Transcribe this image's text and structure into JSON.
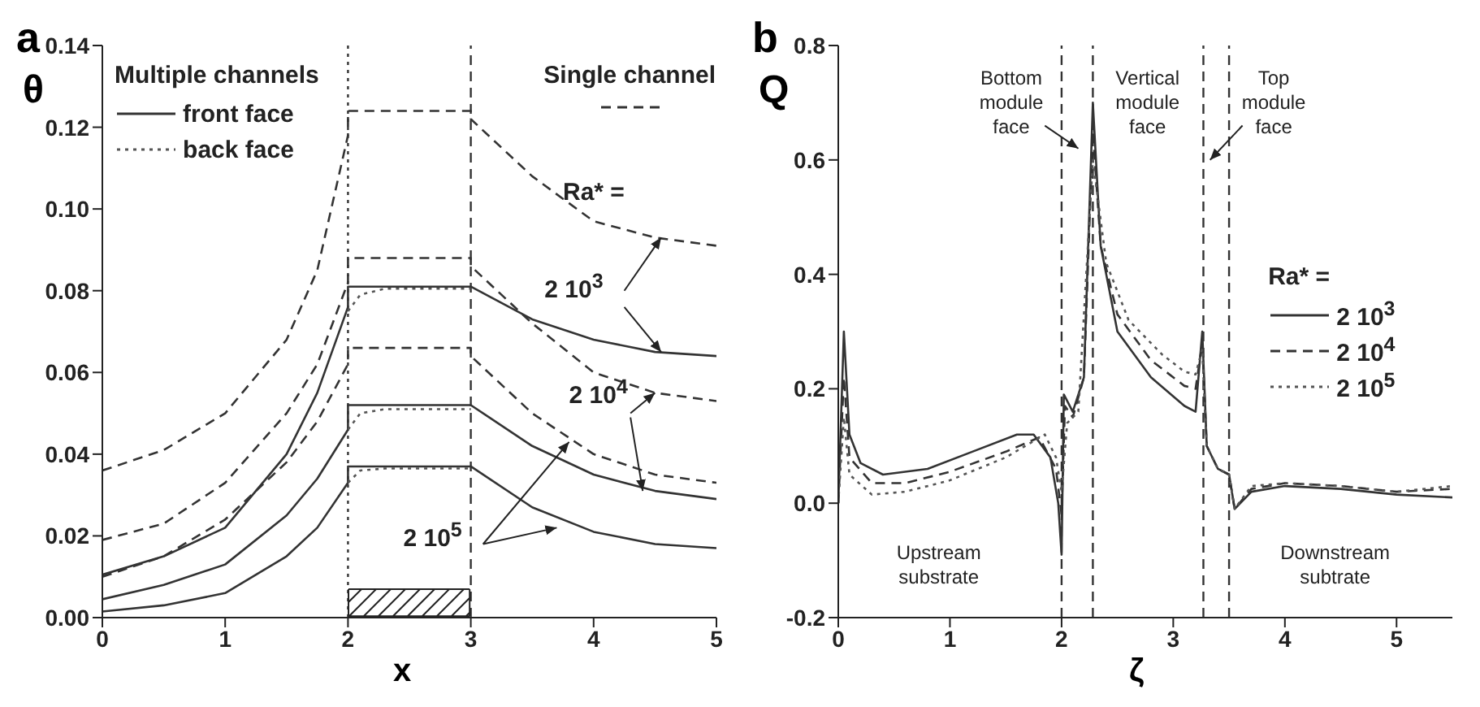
{
  "chart_data": [
    {
      "type": "line",
      "title": "a",
      "xlabel": "x",
      "ylabel": "θ",
      "legend_title": "Multiple channels",
      "legend": "top",
      "xlim": [
        0,
        5
      ],
      "ylim": [
        0,
        0.14
      ],
      "xticks": [
        0,
        1,
        2,
        3,
        4,
        5
      ],
      "yticks": [
        {
          "value": 0,
          "label": "0.00"
        },
        {
          "value": 0.02,
          "label": "0.02"
        },
        {
          "value": 0.04,
          "label": "0.04"
        },
        {
          "value": 0.06,
          "label": "0.06"
        },
        {
          "value": 0.08,
          "label": "0.08"
        },
        {
          "value": 0.1,
          "label": "0.10"
        },
        {
          "value": 0.12,
          "label": "0.12"
        },
        {
          "value": 0.14,
          "label": "0.14"
        }
      ],
      "ref_lines": [
        {
          "axis": "x",
          "value": 2,
          "line_style": "dotted",
          "color": "#333333"
        },
        {
          "axis": "x",
          "value": 3,
          "line_style": "dashed",
          "color": "#333333"
        }
      ],
      "annotations": [
        "Ra* =",
        {
          "text": "2 10$^{3}$",
          "x": 4.55,
          "y": 0.093
        },
        {
          "text": "2 10$^{4}$",
          "x": 4.5,
          "y": 0.055
        },
        {
          "text": "2 10$^{5}$",
          "x": 3.8,
          "y": 0.043
        }
      ],
      "series": [
        {
          "name": "front face",
          "color": "#333333",
          "line_style": "solid",
          "x": [
            0,
            0.5,
            1,
            1.5,
            1.75,
            2,
            2,
            3,
            3,
            3.5,
            4,
            4.5,
            5
          ],
          "values": [
            0.0105,
            0.015,
            0.022,
            0.04,
            0.055,
            0.076,
            0.081,
            0.081,
            0.081,
            0.073,
            0.068,
            0.065,
            0.064
          ]
        },
        {
          "name": "back face",
          "color": "#555555",
          "line_style": "dotted",
          "x": [
            2,
            2.1,
            2.3,
            3
          ],
          "values": [
            0.075,
            0.079,
            0.0805,
            0.0805
          ]
        },
        {
          "name": "Single channel",
          "color": "#333333",
          "line_style": "dashed",
          "x": [
            0,
            0.5,
            1,
            1.5,
            1.75,
            2,
            2,
            3,
            3,
            3.5,
            4,
            4.5,
            5
          ],
          "values": [
            0.036,
            0.041,
            0.05,
            0.068,
            0.085,
            0.118,
            0.124,
            0.124,
            0.122,
            0.108,
            0.097,
            0.093,
            0.091
          ]
        },
        {
          "color": "#333333",
          "line_style": "solid",
          "x": [
            0,
            0.5,
            1,
            1.5,
            1.75,
            2,
            2,
            3,
            3,
            3.5,
            4,
            4.5,
            5
          ],
          "values": [
            0.0045,
            0.008,
            0.013,
            0.025,
            0.034,
            0.046,
            0.052,
            0.052,
            0.052,
            0.042,
            0.035,
            0.031,
            0.029
          ]
        },
        {
          "color": "#555555",
          "line_style": "dotted",
          "x": [
            2,
            2.1,
            2.3,
            3
          ],
          "values": [
            0.046,
            0.05,
            0.051,
            0.051
          ]
        },
        {
          "color": "#333333",
          "line_style": "dashed",
          "x": [
            0,
            0.5,
            1,
            1.5,
            1.75,
            2,
            2,
            3,
            3,
            3.5,
            4,
            4.5,
            5
          ],
          "values": [
            0.019,
            0.023,
            0.033,
            0.05,
            0.062,
            0.082,
            0.088,
            0.088,
            0.086,
            0.072,
            0.06,
            0.055,
            0.053
          ]
        },
        {
          "color": "#333333",
          "line_style": "solid",
          "x": [
            0,
            0.5,
            1,
            1.5,
            1.75,
            2,
            2,
            3,
            3,
            3.5,
            4,
            4.5,
            5
          ],
          "values": [
            0.0015,
            0.003,
            0.006,
            0.015,
            0.022,
            0.033,
            0.037,
            0.037,
            0.037,
            0.027,
            0.021,
            0.018,
            0.017
          ]
        },
        {
          "color": "#555555",
          "line_style": "dotted",
          "x": [
            2,
            2.1,
            2.3,
            3
          ],
          "values": [
            0.033,
            0.036,
            0.0365,
            0.0365
          ]
        },
        {
          "color": "#333333",
          "line_style": "dashed",
          "x": [
            0,
            0.5,
            1,
            1.5,
            1.75,
            2,
            2,
            3,
            3,
            3.5,
            4,
            4.5,
            5
          ],
          "values": [
            0.01,
            0.015,
            0.024,
            0.038,
            0.048,
            0.062,
            0.066,
            0.066,
            0.064,
            0.05,
            0.04,
            0.035,
            0.033
          ]
        }
      ]
    },
    {
      "type": "line",
      "title": "b",
      "xlabel": "ζ",
      "ylabel": "Q",
      "legend_title": "Ra* =",
      "legend": "right",
      "xlim": [
        0,
        5.5
      ],
      "ylim": [
        -0.2,
        0.8
      ],
      "xticks": [
        0,
        1,
        2,
        3,
        4,
        5
      ],
      "yticks": [
        {
          "value": -0.2,
          "label": "-0.2"
        },
        {
          "value": 0,
          "label": "0.0"
        },
        {
          "value": 0.2,
          "label": "0.2"
        },
        {
          "value": 0.4,
          "label": "0.4"
        },
        {
          "value": 0.6,
          "label": "0.6"
        },
        {
          "value": 0.8,
          "label": "0.8"
        }
      ],
      "ref_lines": [
        {
          "axis": "x",
          "value": 2,
          "line_style": "dashed",
          "color": "#333333"
        },
        {
          "axis": "x",
          "value": 2.28,
          "line_style": "dashed",
          "color": "#333333"
        },
        {
          "axis": "x",
          "value": 3.27,
          "line_style": "dashed",
          "color": "#333333"
        },
        {
          "axis": "x",
          "value": 3.5,
          "line_style": "dashed",
          "color": "#333333"
        }
      ],
      "annotations": [
        "Bottom module face",
        "Vertical module face",
        "Top module face",
        "Upstream substrate",
        "Downstream subtrate"
      ],
      "series": [
        {
          "name": "2 10$^{3}$",
          "color": "#333333",
          "line_style": "solid",
          "x": [
            0,
            0.05,
            0.1,
            0.2,
            0.4,
            0.8,
            1.2,
            1.6,
            1.75,
            1.9,
            1.97,
            2,
            2.02,
            2.1,
            2.2,
            2.28,
            2.35,
            2.5,
            2.8,
            3.1,
            3.2,
            3.26,
            3.3,
            3.4,
            3.5,
            3.55,
            3.7,
            4,
            4.5,
            5,
            5.5
          ],
          "values": [
            0,
            0.3,
            0.12,
            0.07,
            0.05,
            0.06,
            0.09,
            0.12,
            0.12,
            0.08,
            0,
            -0.09,
            0.19,
            0.16,
            0.22,
            0.7,
            0.45,
            0.3,
            0.22,
            0.17,
            0.16,
            0.3,
            0.1,
            0.06,
            0.05,
            -0.01,
            0.02,
            0.03,
            0.025,
            0.015,
            0.01
          ]
        },
        {
          "name": "2 10$^{4}$",
          "color": "#333333",
          "line_style": "dashed",
          "x": [
            0,
            0.05,
            0.1,
            0.3,
            0.6,
            1,
            1.5,
            1.8,
            1.95,
            2,
            2.03,
            2.1,
            2.2,
            2.28,
            2.35,
            2.5,
            2.8,
            3.1,
            3.2,
            3.26,
            3.3,
            3.4,
            3.5,
            3.55,
            3.7,
            4,
            4.5,
            5,
            5.5
          ],
          "values": [
            0,
            0.22,
            0.08,
            0.035,
            0.035,
            0.055,
            0.09,
            0.115,
            0.06,
            -0.02,
            0.17,
            0.15,
            0.22,
            0.65,
            0.45,
            0.33,
            0.25,
            0.205,
            0.2,
            0.28,
            0.1,
            0.06,
            0.05,
            -0.01,
            0.025,
            0.035,
            0.03,
            0.02,
            0.025
          ]
        },
        {
          "name": "2 10$^{5}$",
          "color": "#555555",
          "line_style": "dotted",
          "x": [
            0,
            0.05,
            0.1,
            0.3,
            0.6,
            1,
            1.5,
            1.85,
            1.95,
            2,
            2.05,
            2.15,
            2.28,
            2.4,
            2.6,
            2.9,
            3.1,
            3.2,
            3.26,
            3.3,
            3.4,
            3.5,
            3.55,
            3.7,
            4,
            4.5,
            5,
            5.5
          ],
          "values": [
            0,
            0.15,
            0.05,
            0.015,
            0.02,
            0.04,
            0.08,
            0.12,
            0.08,
            0.02,
            0.14,
            0.16,
            0.6,
            0.42,
            0.32,
            0.26,
            0.23,
            0.225,
            0.27,
            0.1,
            0.06,
            0.05,
            -0.01,
            0.03,
            0.035,
            0.03,
            0.02,
            0.03
          ]
        }
      ]
    }
  ]
}
